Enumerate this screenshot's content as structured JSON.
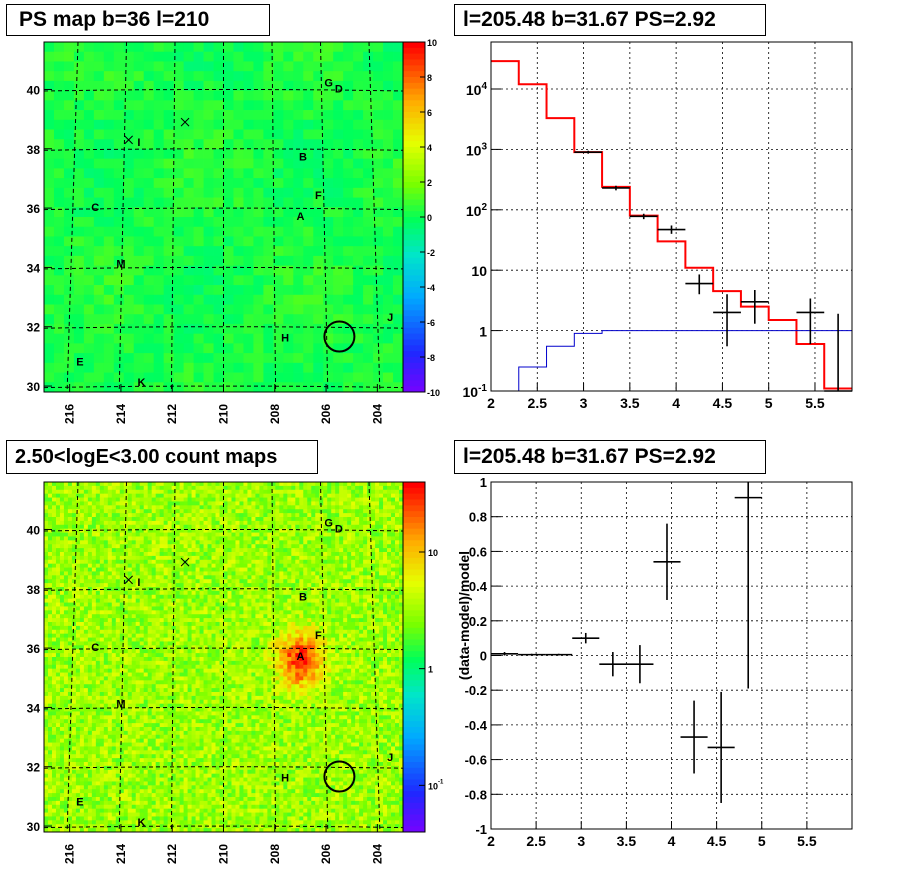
{
  "chart_data": [
    {
      "type": "heatmap",
      "title": "PS map b=36 l=210",
      "x_ticks": [
        "216",
        "214",
        "212",
        "210",
        "208",
        "206",
        "204"
      ],
      "y_ticks": [
        "30",
        "32",
        "34",
        "36",
        "38",
        "40"
      ],
      "xlim": [
        217,
        203
      ],
      "ylim": [
        29.8,
        41.6
      ],
      "colorbar_ticks": [
        "10",
        "8",
        "6",
        "4",
        "2",
        "0",
        "-2",
        "-4",
        "-6",
        "-8",
        "-10"
      ],
      "colorbar_range": [
        -10,
        10
      ],
      "grid": true,
      "labels": [
        {
          "text": "G",
          "l": 205.9,
          "b": 40.1
        },
        {
          "text": "D",
          "l": 205.5,
          "b": 39.9
        },
        {
          "text": "I",
          "l": 213.3,
          "b": 38.1
        },
        {
          "text": "B",
          "l": 206.9,
          "b": 37.6
        },
        {
          "text": "F",
          "l": 206.3,
          "b": 36.3
        },
        {
          "text": "C",
          "l": 215.0,
          "b": 35.9
        },
        {
          "text": "A",
          "l": 207.0,
          "b": 35.6
        },
        {
          "text": "M",
          "l": 214.0,
          "b": 34.0
        },
        {
          "text": "J",
          "l": 203.5,
          "b": 32.2
        },
        {
          "text": "H",
          "l": 207.6,
          "b": 31.5
        },
        {
          "text": "E",
          "l": 215.6,
          "b": 30.7
        },
        {
          "text": "K",
          "l": 213.2,
          "b": 30.0
        }
      ],
      "markers": [
        {
          "l": 213.7,
          "b": 38.3
        },
        {
          "l": 211.5,
          "b": 38.9
        }
      ],
      "circle": {
        "l": 205.48,
        "b": 31.67
      }
    },
    {
      "type": "line",
      "title": "l=205.48 b=31.67 PS=2.92",
      "xlim": [
        2.0,
        5.9
      ],
      "ylim": [
        0.1,
        60000
      ],
      "yscale": "log",
      "x_ticks": [
        "2",
        "2.5",
        "3",
        "3.5",
        "4",
        "4.5",
        "5",
        "5.5"
      ],
      "y_ticks": [
        "10^-1",
        "1",
        "10",
        "10^2",
        "10^3",
        "10^4"
      ],
      "grid": true,
      "series": [
        {
          "color": "#ff0000",
          "edges": [
            2.0,
            2.3,
            2.6,
            2.9,
            3.2,
            3.5,
            3.8,
            4.1,
            4.4,
            4.7,
            5.0,
            5.3,
            5.6,
            5.9
          ],
          "values": [
            29000,
            12000,
            3300,
            900,
            240,
            80,
            30,
            11,
            4.5,
            2.5,
            1.5,
            0.6,
            0.11
          ]
        },
        {
          "color": "#0000cc",
          "edges": [
            2.0,
            2.3,
            2.6,
            2.9,
            3.2,
            3.5,
            3.8,
            4.1,
            4.4,
            4.7,
            5.0,
            5.3,
            5.6,
            5.9
          ],
          "values": [
            0.03,
            0.25,
            0.55,
            0.9,
            1.0,
            1.0,
            1.0,
            1.0,
            1.0,
            1.0,
            1.0,
            1.0,
            1.0
          ]
        }
      ],
      "points": [
        {
          "x": 3.05,
          "y": 900,
          "xerr": 0.15,
          "ylo": 850,
          "yhi": 950
        },
        {
          "x": 3.35,
          "y": 230,
          "xerr": 0.15,
          "ylo": 210,
          "yhi": 250
        },
        {
          "x": 3.65,
          "y": 78,
          "xerr": 0.15,
          "ylo": 70,
          "yhi": 86
        },
        {
          "x": 3.95,
          "y": 47,
          "xerr": 0.15,
          "ylo": 40,
          "yhi": 55
        },
        {
          "x": 4.25,
          "y": 6,
          "xerr": 0.15,
          "ylo": 4,
          "yhi": 8.5
        },
        {
          "x": 4.55,
          "y": 2,
          "xerr": 0.15,
          "ylo": 0.55,
          "yhi": 4
        },
        {
          "x": 4.85,
          "y": 3,
          "xerr": 0.15,
          "ylo": 1.3,
          "yhi": 4.7
        },
        {
          "x": 5.45,
          "y": 2,
          "xerr": 0.15,
          "ylo": 0.6,
          "yhi": 3.4
        },
        {
          "x": 5.75,
          "y": 0.1,
          "xerr": 0.15,
          "ylo": 0.1,
          "yhi": 1.9
        }
      ]
    },
    {
      "type": "heatmap",
      "title": "2.50<logE<3.00 count maps",
      "x_ticks": [
        "216",
        "214",
        "212",
        "210",
        "208",
        "206",
        "204"
      ],
      "y_ticks": [
        "30",
        "32",
        "34",
        "36",
        "38",
        "40"
      ],
      "xlim": [
        217,
        203
      ],
      "ylim": [
        29.8,
        41.6
      ],
      "colorbar_ticks": [
        "10",
        "1",
        "10^-1"
      ],
      "colorbar_scale": "log",
      "grid": true,
      "labels": [
        {
          "text": "G",
          "l": 205.9,
          "b": 40.1
        },
        {
          "text": "D",
          "l": 205.5,
          "b": 39.9
        },
        {
          "text": "I",
          "l": 213.3,
          "b": 38.1
        },
        {
          "text": "B",
          "l": 206.9,
          "b": 37.6
        },
        {
          "text": "F",
          "l": 206.3,
          "b": 36.3
        },
        {
          "text": "C",
          "l": 215.0,
          "b": 35.9
        },
        {
          "text": "A",
          "l": 207.0,
          "b": 35.6
        },
        {
          "text": "M",
          "l": 214.0,
          "b": 34.0
        },
        {
          "text": "J",
          "l": 203.5,
          "b": 32.2
        },
        {
          "text": "H",
          "l": 207.6,
          "b": 31.5
        },
        {
          "text": "E",
          "l": 215.6,
          "b": 30.7
        },
        {
          "text": "K",
          "l": 213.2,
          "b": 30.0
        }
      ],
      "markers": [
        {
          "l": 213.7,
          "b": 38.3
        },
        {
          "l": 211.5,
          "b": 38.9
        }
      ],
      "circle": {
        "l": 205.48,
        "b": 31.67
      },
      "hotspot": {
        "l": 207.0,
        "b": 35.6
      }
    },
    {
      "type": "scatter",
      "title": "l=205.48 b=31.67 PS=2.92",
      "ylabel": "(data-model)/model",
      "xlim": [
        2.0,
        6.0
      ],
      "ylim": [
        -1,
        1
      ],
      "x_ticks": [
        "2",
        "2.5",
        "3",
        "3.5",
        "4",
        "4.5",
        "5",
        "5.5"
      ],
      "y_ticks": [
        "1",
        "0.8",
        "0.6",
        "0.4",
        "0.2",
        "0",
        "-0.2",
        "-0.4",
        "-0.6",
        "-0.8",
        "-1"
      ],
      "grid": true,
      "points": [
        {
          "x": 2.15,
          "y": 0.01,
          "xerr": 0.15,
          "ylo": 0.0,
          "yhi": 0.02
        },
        {
          "x": 2.45,
          "y": 0.005,
          "xerr": 0.15,
          "ylo": 0.0,
          "yhi": 0.01
        },
        {
          "x": 2.75,
          "y": 0.005,
          "xerr": 0.15,
          "ylo": 0.0,
          "yhi": 0.01
        },
        {
          "x": 3.05,
          "y": 0.1,
          "xerr": 0.15,
          "ylo": 0.07,
          "yhi": 0.13
        },
        {
          "x": 3.35,
          "y": -0.05,
          "xerr": 0.15,
          "ylo": -0.12,
          "yhi": 0.02
        },
        {
          "x": 3.65,
          "y": -0.05,
          "xerr": 0.15,
          "ylo": -0.16,
          "yhi": 0.06
        },
        {
          "x": 3.95,
          "y": 0.54,
          "xerr": 0.15,
          "ylo": 0.32,
          "yhi": 0.76
        },
        {
          "x": 4.25,
          "y": -0.47,
          "xerr": 0.15,
          "ylo": -0.68,
          "yhi": -0.26
        },
        {
          "x": 4.55,
          "y": -0.53,
          "xerr": 0.15,
          "ylo": -0.85,
          "yhi": -0.21
        },
        {
          "x": 4.85,
          "y": 0.91,
          "xerr": 0.15,
          "ylo": -0.19,
          "yhi": 1.0
        }
      ]
    }
  ]
}
